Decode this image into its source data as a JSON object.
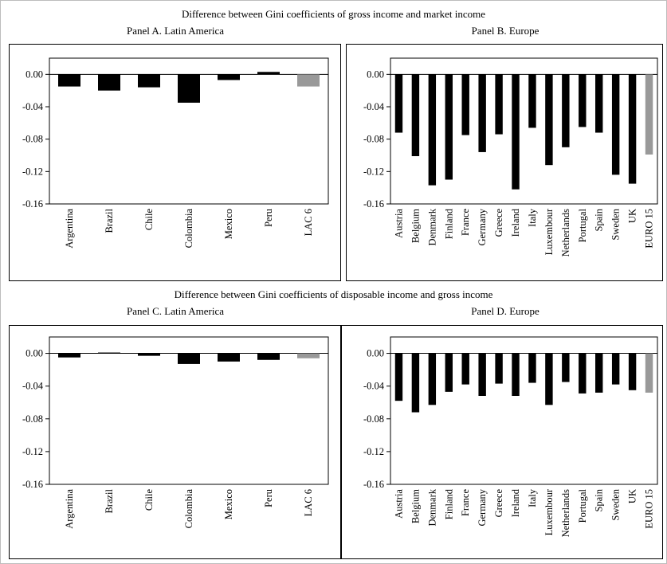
{
  "section_titles": {
    "top": "Difference between Gini coefficients of gross income and market income",
    "bottom": "Difference between Gini coefficients of disposable income and gross income"
  },
  "colors": {
    "bar": "#000000",
    "aggregate_bar": "#999999"
  },
  "chart_data": [
    {
      "id": "A",
      "type": "bar",
      "title": "Panel A. Latin America",
      "categories": [
        "Argentina",
        "Brazil",
        "Chile",
        "Colombia",
        "Mexico",
        "Peru",
        "LAC 6"
      ],
      "values": [
        -0.015,
        -0.02,
        -0.016,
        -0.035,
        -0.007,
        0.003,
        -0.015
      ],
      "ylim": [
        -0.16,
        0.02
      ],
      "yticks": [
        "0.00",
        "-0.04",
        "-0.08",
        "-0.12",
        "-0.16"
      ],
      "grid": false,
      "highlight_category": "LAC 6"
    },
    {
      "id": "B",
      "type": "bar",
      "title": "Panel B. Europe",
      "categories": [
        "Austria",
        "Belgium",
        "Denmark",
        "Finland",
        "France",
        "Germany",
        "Greece",
        "Ireland",
        "Italy",
        "Luxembour",
        "Netherlands",
        "Portugal",
        "Spain",
        "Sweden",
        "UK",
        "EURO 15"
      ],
      "values": [
        -0.072,
        -0.101,
        -0.137,
        -0.13,
        -0.075,
        -0.096,
        -0.074,
        -0.142,
        -0.066,
        -0.112,
        -0.09,
        -0.065,
        -0.072,
        -0.124,
        -0.135,
        -0.099
      ],
      "ylim": [
        -0.16,
        0.02
      ],
      "yticks": [
        "0.00",
        "-0.04",
        "-0.08",
        "-0.12",
        "-0.16"
      ],
      "grid": false,
      "highlight_category": "EURO 15"
    },
    {
      "id": "C",
      "type": "bar",
      "title": "Panel C. Latin America",
      "categories": [
        "Argentina",
        "Brazil",
        "Chile",
        "Colombia",
        "Mexico",
        "Peru",
        "LAC 6"
      ],
      "values": [
        -0.005,
        0.001,
        -0.003,
        -0.013,
        -0.01,
        -0.008,
        -0.006
      ],
      "ylim": [
        -0.16,
        0.02
      ],
      "yticks": [
        "0.00",
        "-0.04",
        "-0.08",
        "-0.12",
        "-0.16"
      ],
      "grid": false,
      "highlight_category": "LAC 6"
    },
    {
      "id": "D",
      "type": "bar",
      "title": "Panel D. Europe",
      "categories": [
        "Austria",
        "Belgium",
        "Denmark",
        "Finland",
        "France",
        "Germany",
        "Greece",
        "Ireland",
        "Italy",
        "Luxembour",
        "Netherlands",
        "Portugal",
        "Spain",
        "Sweden",
        "UK",
        "EURO 15"
      ],
      "values": [
        -0.058,
        -0.072,
        -0.063,
        -0.047,
        -0.038,
        -0.052,
        -0.037,
        -0.052,
        -0.036,
        -0.063,
        -0.035,
        -0.049,
        -0.048,
        -0.038,
        -0.045,
        -0.048
      ],
      "ylim": [
        -0.16,
        0.02
      ],
      "yticks": [
        "0.00",
        "-0.04",
        "-0.08",
        "-0.12",
        "-0.16"
      ],
      "grid": false,
      "highlight_category": "EURO 15"
    }
  ]
}
